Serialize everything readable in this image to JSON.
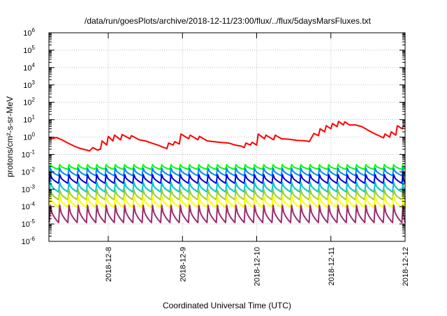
{
  "chart_data": {
    "type": "line",
    "title": "/data/run/goesPlots/archive/2018-12-11/23:00/flux/../flux/5daysMarsFluxes.txt",
    "xlabel": "Coordinated Universal Time (UTC)",
    "ylabel": "protons/cm²-s-sr-MeV",
    "ylim": [
      1e-06,
      1000000.0
    ],
    "yscale": "log",
    "xlim": [
      "2018-12-07 04:48",
      "2018-12-12 00:00"
    ],
    "grid": true,
    "legend": "none",
    "xticks": [
      "2018-12-8",
      "2018-12-9",
      "2018-12-10",
      "2018-12-11",
      "2018-12-12"
    ],
    "yticks": [
      {
        "base": "10",
        "exp": "6"
      },
      {
        "base": "10",
        "exp": "5"
      },
      {
        "base": "10",
        "exp": "4"
      },
      {
        "base": "10",
        "exp": "3"
      },
      {
        "base": "10",
        "exp": "2"
      },
      {
        "base": "10",
        "exp": "1"
      },
      {
        "base": "10",
        "exp": "0"
      },
      {
        "base": "10",
        "exp": "-1"
      },
      {
        "base": "10",
        "exp": "-2"
      },
      {
        "base": "10",
        "exp": "-3"
      },
      {
        "base": "10",
        "exp": "-4"
      },
      {
        "base": "10",
        "exp": "-5"
      },
      {
        "base": "10",
        "exp": "-6"
      }
    ],
    "series": [
      {
        "color": "#ff0000",
        "sawtooth": false,
        "points": [
          [
            "2018-12-07 04:48",
            1.0
          ],
          [
            "2018-12-07 06:00",
            0.8
          ],
          [
            "2018-12-07 07:12",
            0.95
          ],
          [
            "2018-12-07 09:00",
            0.7
          ],
          [
            "2018-12-07 11:00",
            0.45
          ],
          [
            "2018-12-07 13:00",
            0.3
          ],
          [
            "2018-12-07 15:00",
            0.22
          ],
          [
            "2018-12-07 17:00",
            0.18
          ],
          [
            "2018-12-07 18:00",
            0.16
          ],
          [
            "2018-12-07 19:00",
            0.25
          ],
          [
            "2018-12-07 20:30",
            0.18
          ],
          [
            "2018-12-07 21:30",
            0.2
          ],
          [
            "2018-12-07 22:00",
            0.6
          ],
          [
            "2018-12-07 23:30",
            0.35
          ],
          [
            "2018-12-08 00:00",
            1.1
          ],
          [
            "2018-12-08 01:30",
            0.6
          ],
          [
            "2018-12-08 02:00",
            1.3
          ],
          [
            "2018-12-08 04:00",
            0.7
          ],
          [
            "2018-12-08 04:30",
            1.4
          ],
          [
            "2018-12-08 07:00",
            0.8
          ],
          [
            "2018-12-08 07:30",
            1.2
          ],
          [
            "2018-12-08 10:00",
            0.7
          ],
          [
            "2018-12-08 12:00",
            0.6
          ],
          [
            "2018-12-08 14:00",
            0.45
          ],
          [
            "2018-12-08 16:00",
            0.35
          ],
          [
            "2018-12-08 18:00",
            0.25
          ],
          [
            "2018-12-08 19:00",
            0.22
          ],
          [
            "2018-12-08 19:30",
            0.45
          ],
          [
            "2018-12-08 21:00",
            0.35
          ],
          [
            "2018-12-08 21:30",
            0.55
          ],
          [
            "2018-12-08 23:00",
            0.4
          ],
          [
            "2018-12-08 23:30",
            1.5
          ],
          [
            "2018-12-09 02:00",
            0.8
          ],
          [
            "2018-12-09 02:30",
            1.3
          ],
          [
            "2018-12-09 05:00",
            0.7
          ],
          [
            "2018-12-09 05:30",
            1.1
          ],
          [
            "2018-12-09 08:00",
            0.6
          ],
          [
            "2018-12-09 10:00",
            0.55
          ],
          [
            "2018-12-09 12:00",
            0.5
          ],
          [
            "2018-12-09 15:00",
            0.45
          ],
          [
            "2018-12-09 17:00",
            0.35
          ],
          [
            "2018-12-09 19:00",
            0.3
          ],
          [
            "2018-12-09 20:00",
            0.25
          ],
          [
            "2018-12-09 20:30",
            0.45
          ],
          [
            "2018-12-09 22:00",
            0.35
          ],
          [
            "2018-12-09 22:30",
            0.5
          ],
          [
            "2018-12-10 00:00",
            0.35
          ],
          [
            "2018-12-10 00:30",
            1.5
          ],
          [
            "2018-12-10 02:30",
            0.8
          ],
          [
            "2018-12-10 03:00",
            1.3
          ],
          [
            "2018-12-10 05:30",
            0.7
          ],
          [
            "2018-12-10 06:00",
            1.3
          ],
          [
            "2018-12-10 08:00",
            0.8
          ],
          [
            "2018-12-10 10:30",
            0.75
          ],
          [
            "2018-12-10 13:00",
            0.65
          ],
          [
            "2018-12-10 16:00",
            0.6
          ],
          [
            "2018-12-10 17:00",
            0.55
          ],
          [
            "2018-12-10 18:30",
            1.6
          ],
          [
            "2018-12-10 20:00",
            1.2
          ],
          [
            "2018-12-10 20:30",
            3.0
          ],
          [
            "2018-12-10 22:00",
            2.0
          ],
          [
            "2018-12-10 22:30",
            4.5
          ],
          [
            "2018-12-11 00:00",
            3.0
          ],
          [
            "2018-12-11 00:30",
            6.0
          ],
          [
            "2018-12-11 02:00",
            4.0
          ],
          [
            "2018-12-11 02:30",
            8.0
          ],
          [
            "2018-12-11 04:00",
            5.0
          ],
          [
            "2018-12-11 04:30",
            7.5
          ],
          [
            "2018-12-11 06:00",
            5.0
          ],
          [
            "2018-12-11 08:00",
            5.0
          ],
          [
            "2018-12-11 10:00",
            4.0
          ],
          [
            "2018-12-11 12:00",
            2.5
          ],
          [
            "2018-12-11 14:00",
            1.6
          ],
          [
            "2018-12-11 16:00",
            1.1
          ],
          [
            "2018-12-11 17:00",
            0.9
          ],
          [
            "2018-12-11 17:30",
            1.5
          ],
          [
            "2018-12-11 19:00",
            1.0
          ],
          [
            "2018-12-11 19:30",
            2.0
          ],
          [
            "2018-12-11 21:00",
            1.3
          ],
          [
            "2018-12-11 21:30",
            4.5
          ],
          [
            "2018-12-11 23:00",
            3.0
          ],
          [
            "2018-12-11 23:30",
            4.5
          ],
          [
            "2018-12-12 00:00",
            3.8
          ]
        ]
      },
      {
        "color": "#00ff00",
        "sawtooth": true,
        "period_hours": 3,
        "peak": 0.026,
        "trough": 0.014
      },
      {
        "color": "#0088ff",
        "sawtooth": true,
        "period_hours": 3,
        "peak": 0.016,
        "trough": 0.006
      },
      {
        "color": "#0000dd",
        "sawtooth": true,
        "period_hours": 3,
        "peak": 0.007,
        "trough": 0.0022
      },
      {
        "color": "#00c8c8",
        "sawtooth": true,
        "period_hours": 3,
        "peak": 0.0025,
        "trough": 0.0007
      },
      {
        "color": "#9acd32",
        "sawtooth": true,
        "period_hours": 3,
        "peak": 0.0009,
        "trough": 0.00025
      },
      {
        "color": "#ffff00",
        "sawtooth": true,
        "period_hours": 3,
        "peak": 0.0004,
        "trough": 9e-05
      },
      {
        "color": "#9b2d6f",
        "sawtooth": true,
        "period_hours": 3,
        "peak": 0.00012,
        "trough": 1.2e-05
      }
    ]
  }
}
